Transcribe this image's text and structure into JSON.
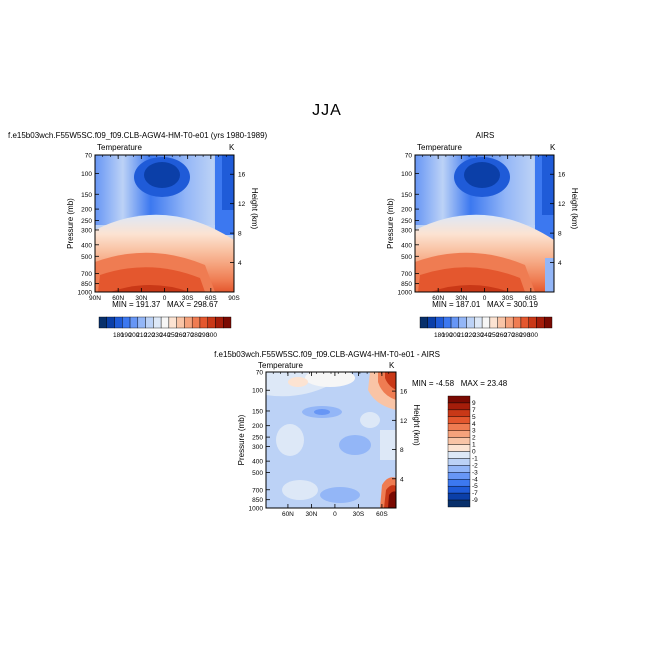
{
  "page": {
    "title": "JJA"
  },
  "chart_data": [
    {
      "type": "heatmap",
      "id": "model",
      "title": "f.e15b03wch.F55W5SC.f09_f09.CLB-AGW4-HM-T0-e01 (yrs 1980-1989)",
      "subtitle": "Temperature",
      "units": "K",
      "xlabel": "",
      "ylabel": "Pressure (mb)",
      "y2label": "Height (km)",
      "x_ticks": [
        "90N",
        "60N",
        "30N",
        "0",
        "30S",
        "60S",
        "90S"
      ],
      "y_ticks": [
        70,
        100,
        150,
        200,
        250,
        300,
        400,
        500,
        700,
        850,
        1000
      ],
      "y2_ticks": [
        16,
        12,
        8,
        4
      ],
      "min_label": "MIN = 191.37",
      "max_label": "MAX = 298.67",
      "colorbar_labels": [
        "180",
        "190",
        "200",
        "210",
        "220",
        "230",
        "240",
        "250",
        "260",
        "270",
        "280",
        "290",
        "300"
      ]
    },
    {
      "type": "heatmap",
      "id": "obs",
      "title": "AIRS",
      "subtitle": "Temperature",
      "units": "K",
      "xlabel": "",
      "ylabel": "Pressure (mb)",
      "y2label": "Height (km)",
      "x_ticks": [
        "60N",
        "30N",
        "0",
        "30S",
        "60S"
      ],
      "y_ticks": [
        70,
        100,
        150,
        200,
        250,
        300,
        400,
        500,
        700,
        850,
        1000
      ],
      "y2_ticks": [
        16,
        12,
        8,
        4
      ],
      "min_label": "MIN = 187.01",
      "max_label": "MAX = 300.19",
      "colorbar_labels": [
        "180",
        "190",
        "200",
        "210",
        "220",
        "230",
        "240",
        "250",
        "260",
        "270",
        "280",
        "290",
        "300"
      ]
    },
    {
      "type": "heatmap",
      "id": "diff",
      "title": "f.e15b03wch.F55W5SC.f09_f09.CLB-AGW4-HM-T0-e01 - AIRS",
      "subtitle": "Temperature",
      "units": "K",
      "xlabel": "",
      "ylabel": "Pressure (mb)",
      "y2label": "Height (km)",
      "x_ticks": [
        "60N",
        "30N",
        "0",
        "30S",
        "60S"
      ],
      "y_ticks": [
        70,
        100,
        150,
        200,
        250,
        300,
        400,
        500,
        700,
        850,
        1000
      ],
      "y2_ticks": [
        16,
        12,
        8,
        4
      ],
      "min_label": "MIN = -4.58",
      "max_label": "MAX = 23.48",
      "legend_labels": [
        "9",
        "7",
        "5",
        "4",
        "3",
        "2",
        "1",
        "0",
        "-1",
        "-2",
        "-3",
        "-4",
        "-5",
        "-7",
        "-9"
      ]
    }
  ],
  "colors": {
    "scale": [
      "#08306b",
      "#0b3fa8",
      "#1f5bd8",
      "#3c78f0",
      "#6796f5",
      "#93b6f7",
      "#bcd2f6",
      "#dde8f7",
      "#f6f6f6",
      "#fce3d2",
      "#f9c4a6",
      "#f5a27c",
      "#ef7c52",
      "#e4572e",
      "#c93817",
      "#a51d0a",
      "#7a0a02"
    ],
    "diff": [
      "#7a0a02",
      "#a51d0a",
      "#c93817",
      "#e4572e",
      "#ef7c52",
      "#f5a27c",
      "#f9c4a6",
      "#fce3d2",
      "#dde8f7",
      "#bcd2f6",
      "#93b6f7",
      "#6796f5",
      "#3c78f0",
      "#1f5bd8",
      "#0b3fa8",
      "#08306b"
    ]
  }
}
